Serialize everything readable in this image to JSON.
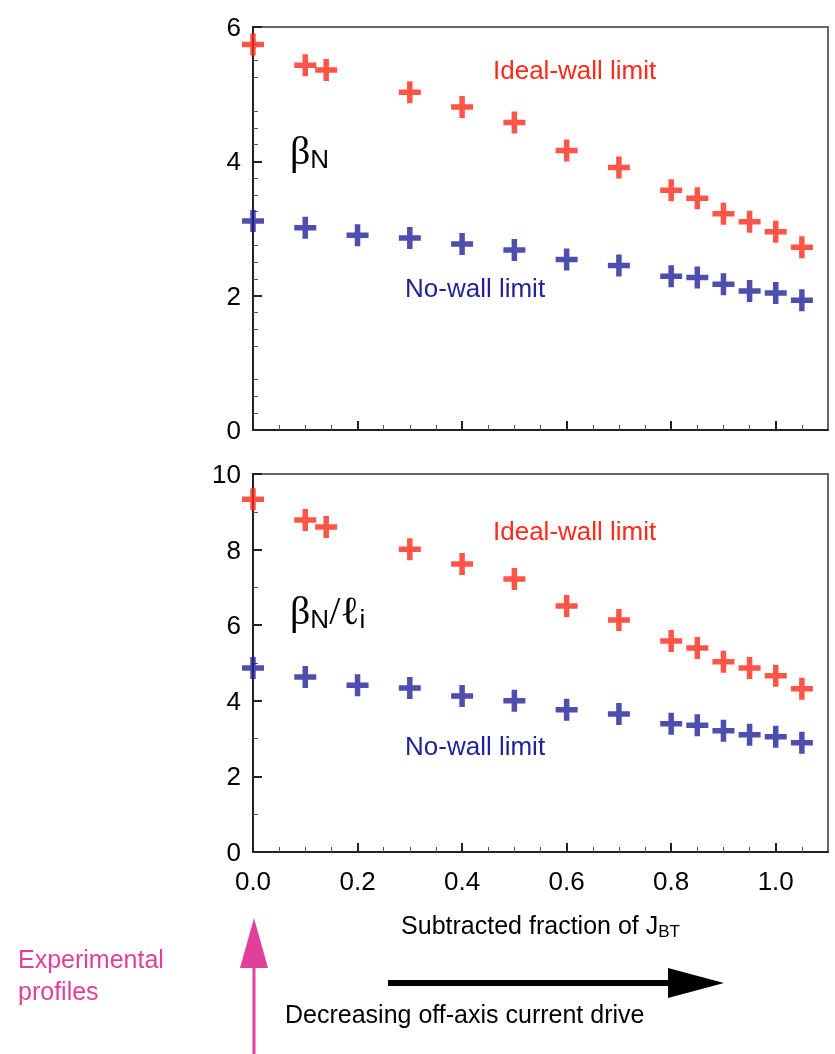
{
  "chart_data": [
    {
      "type": "scatter",
      "ylabel": "β$_{N}$",
      "marker": "cross",
      "grid": false,
      "legend": false,
      "tick_labels": "y",
      "xlim": [
        0,
        1.1
      ],
      "xticks": [
        {
          "value": 0,
          "label": null
        },
        {
          "value": 0.2,
          "label": null
        },
        {
          "value": 0.4,
          "label": null
        },
        {
          "value": 0.6,
          "label": null
        },
        {
          "value": 0.8,
          "label": null
        },
        {
          "value": 1,
          "label": null
        }
      ],
      "ylim": [
        0,
        6
      ],
      "yticks": [
        0,
        2,
        4,
        6
      ],
      "series": [
        {
          "name": "Ideal-wall limit",
          "color": "#ff2a1a",
          "x": [
            0,
            0.1,
            0.14,
            0.3,
            0.4,
            0.5,
            0.6,
            0.7,
            0.8,
            0.85,
            0.9,
            0.95,
            1.0,
            1.05
          ],
          "values": [
            5.74,
            5.43,
            5.36,
            5.03,
            4.81,
            4.58,
            4.16,
            3.91,
            3.57,
            3.45,
            3.22,
            3.1,
            2.95,
            2.72
          ]
        },
        {
          "name": "No-wall limit",
          "color": "#22229a",
          "x": [
            0,
            0.1,
            0.2,
            0.3,
            0.4,
            0.5,
            0.6,
            0.7,
            0.8,
            0.85,
            0.9,
            0.95,
            1.0,
            1.05
          ],
          "values": [
            3.11,
            3.01,
            2.9,
            2.86,
            2.77,
            2.68,
            2.54,
            2.45,
            2.29,
            2.27,
            2.17,
            2.07,
            2.04,
            1.93
          ]
        }
      ]
    },
    {
      "type": "scatter",
      "ylabel": "β$_{N}$/ℓ$_{i}$",
      "xlabel": "Subtracted fraction of J$_{BT}$",
      "marker": "cross",
      "grid": false,
      "legend": false,
      "xlim": [
        0,
        1.1
      ],
      "xticks": [
        {
          "value": 0,
          "label": "0.0"
        },
        {
          "value": 0.2,
          "label": "0.2"
        },
        {
          "value": 0.4,
          "label": "0.4"
        },
        {
          "value": 0.6,
          "label": "0.6"
        },
        {
          "value": 0.8,
          "label": "0.8"
        },
        {
          "value": 1,
          "label": "1.0"
        }
      ],
      "ylim": [
        0,
        10
      ],
      "yticks": [
        0,
        2,
        4,
        6,
        8,
        10
      ],
      "annotations": [
        "Decreasing off-axis current drive",
        "Experimental profiles"
      ],
      "series": [
        {
          "name": "Ideal-wall limit",
          "color": "#ff2a1a",
          "x": [
            0,
            0.1,
            0.14,
            0.3,
            0.4,
            0.5,
            0.6,
            0.7,
            0.8,
            0.85,
            0.9,
            0.95,
            1.0,
            1.05
          ],
          "values": [
            9.33,
            8.78,
            8.6,
            8.01,
            7.62,
            7.22,
            6.51,
            6.14,
            5.58,
            5.4,
            5.03,
            4.87,
            4.66,
            4.32
          ]
        },
        {
          "name": "No-wall limit",
          "color": "#22229a",
          "x": [
            0,
            0.1,
            0.2,
            0.3,
            0.4,
            0.5,
            0.6,
            0.7,
            0.8,
            0.85,
            0.9,
            0.95,
            1.0,
            1.05
          ],
          "values": [
            4.87,
            4.63,
            4.41,
            4.34,
            4.13,
            4.0,
            3.76,
            3.65,
            3.39,
            3.35,
            3.21,
            3.1,
            3.05,
            2.89
          ]
        }
      ]
    }
  ]
}
